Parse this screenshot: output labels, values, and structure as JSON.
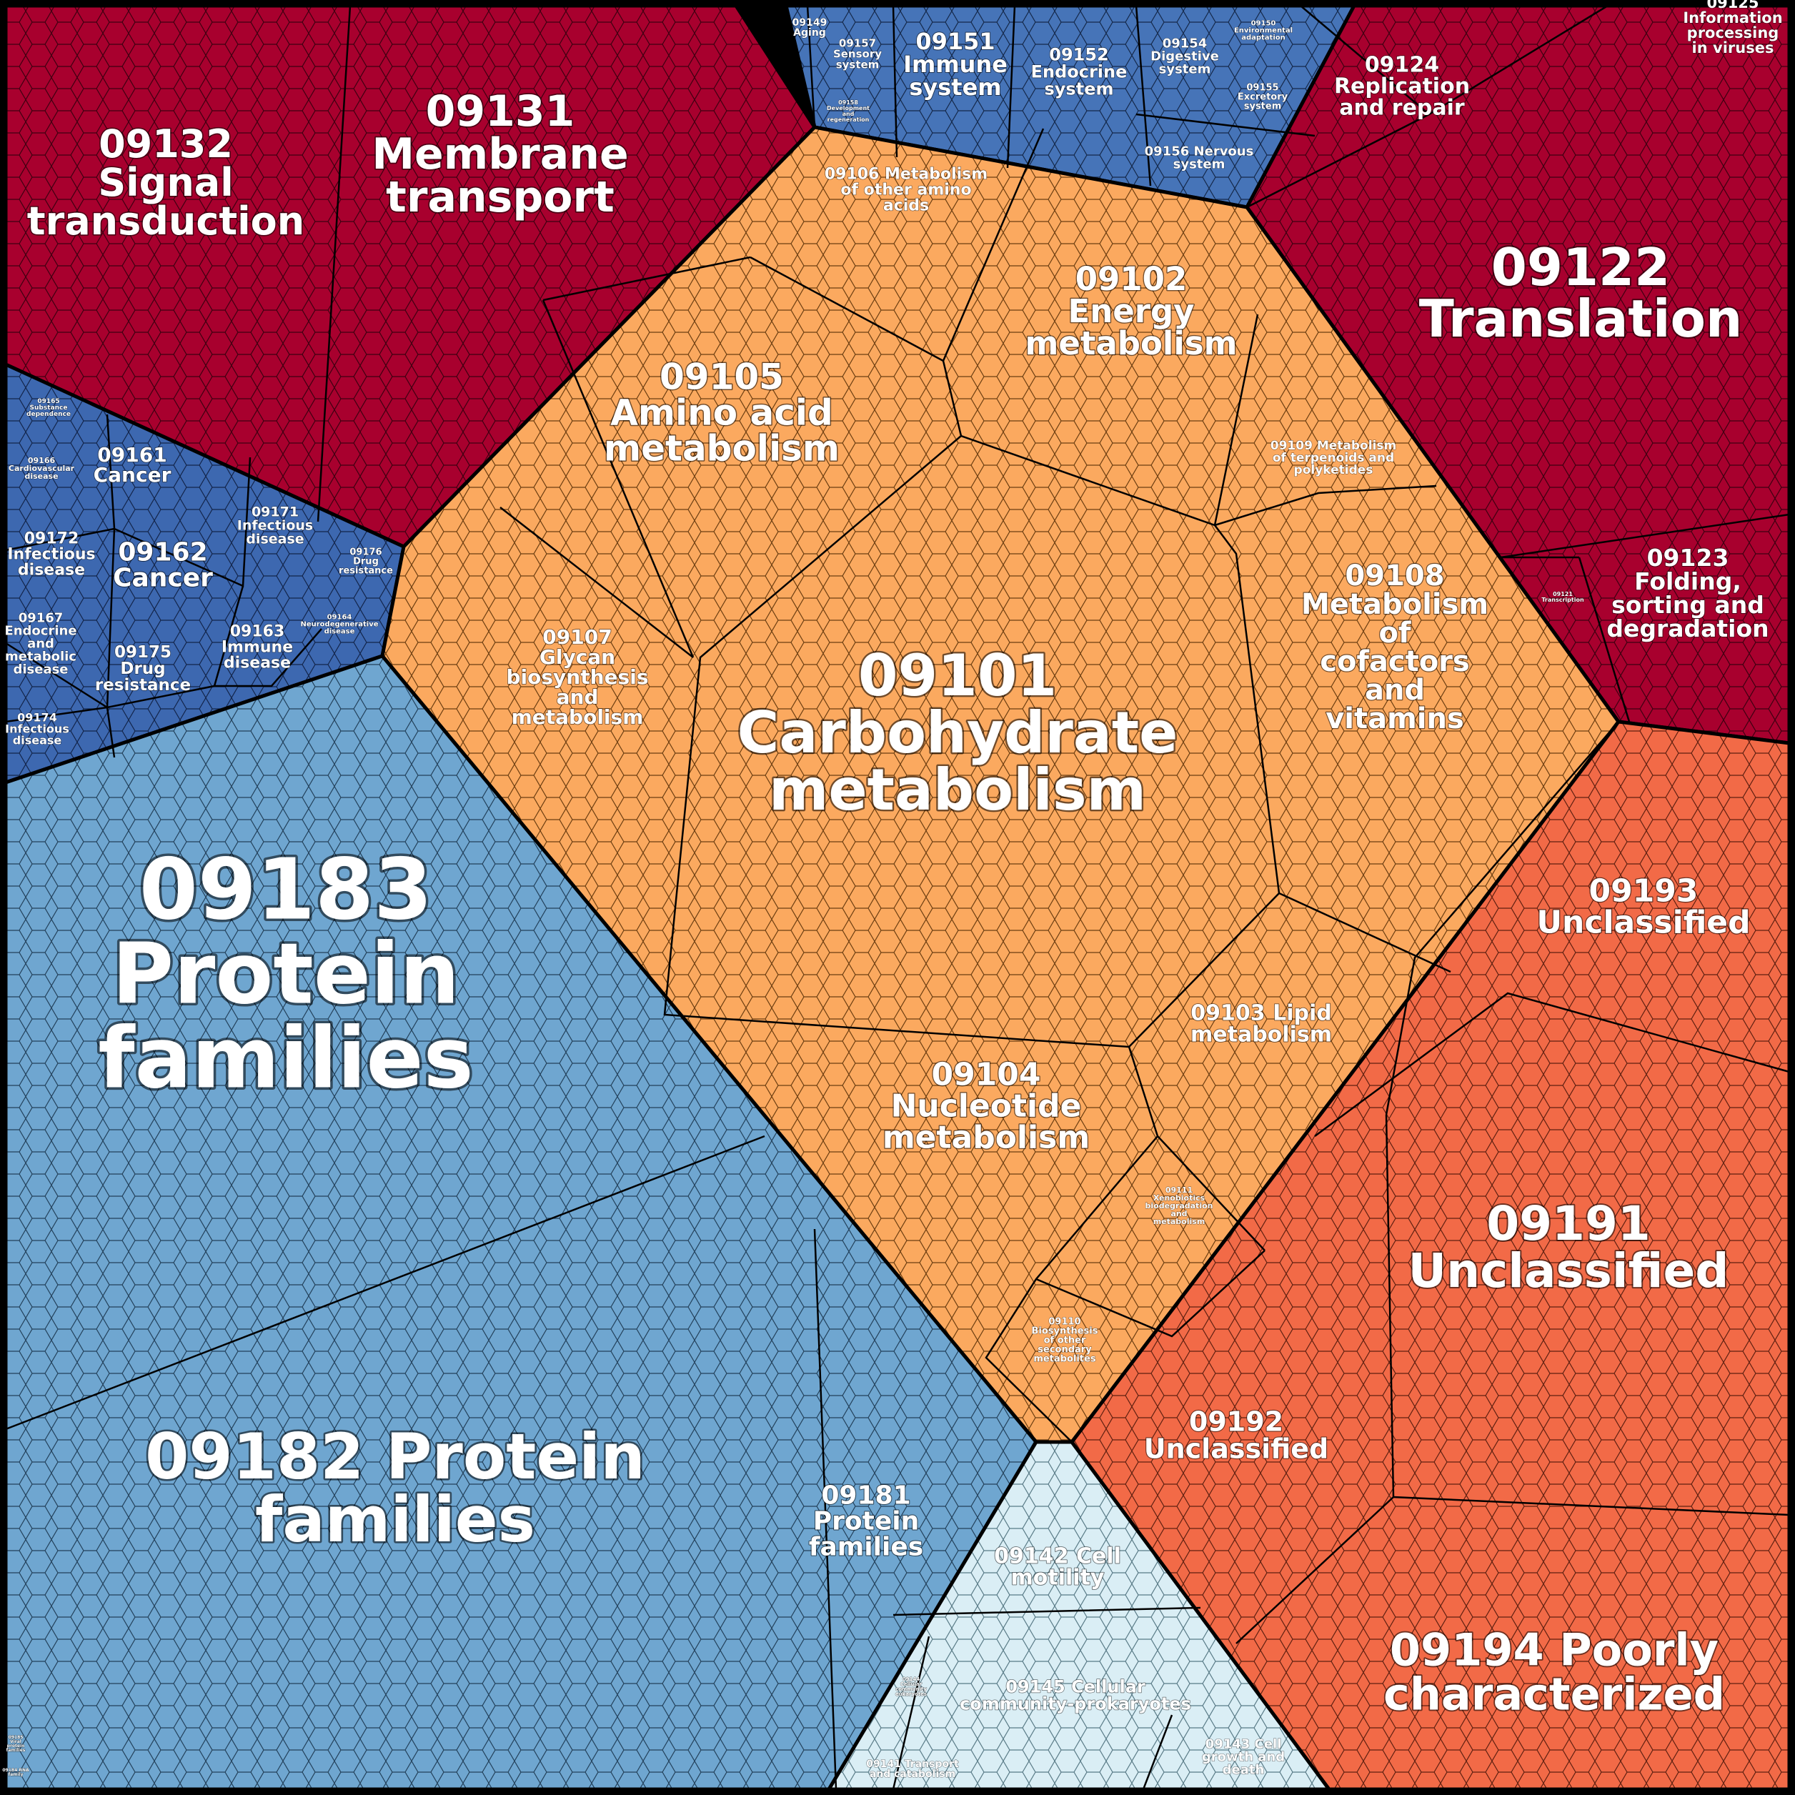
{
  "colors": {
    "metabolism": "#fba95f",
    "genetic_information": "#a8002e",
    "environmental_information": "#4472b8",
    "human_diseases": "#3d6ab3",
    "cellular_processes": "#d8eef4",
    "brite_protein_families": "#6fa6d0",
    "not_included": "#f26a47"
  },
  "categories": {
    "c09132": [
      "09132",
      "Signal",
      "transduction"
    ],
    "c09131": [
      "09131",
      "Membrane",
      "transport"
    ],
    "c09149": [
      "09149",
      "Aging"
    ],
    "c09157": [
      "09157",
      "Sensory",
      "system"
    ],
    "c09151": [
      "09151",
      "Immune",
      "system"
    ],
    "c09152": [
      "09152",
      "Endocrine",
      "system"
    ],
    "c09154": [
      "09154",
      "Digestive",
      "system"
    ],
    "c09150": [
      "09150",
      "Environmental",
      "adaptation"
    ],
    "c09155": [
      "09155",
      "Excretory",
      "system"
    ],
    "c09156": [
      "09156 Nervous",
      "system"
    ],
    "c09158": [
      "09158",
      "Development",
      "and",
      "regeneration"
    ],
    "c09124": [
      "09124",
      "Replication",
      "and repair"
    ],
    "c09125": [
      "09125",
      "Information",
      "processing",
      "in viruses"
    ],
    "c09122": [
      "09122",
      "Translation"
    ],
    "c09123": [
      "09123",
      "Folding,",
      "sorting and",
      "degradation"
    ],
    "c09121": [
      "09121",
      "Transcription"
    ],
    "c09106": [
      "09106 Metabolism",
      "of other amino",
      "acids"
    ],
    "c09102": [
      "09102",
      "Energy",
      "metabolism"
    ],
    "c09105": [
      "09105",
      "Amino acid",
      "metabolism"
    ],
    "c09109": [
      "09109 Metabolism",
      "of terpenoids and",
      "polyketides"
    ],
    "c09108": [
      "09108",
      "Metabolism",
      "of",
      "cofactors",
      "and",
      "vitamins"
    ],
    "c09107": [
      "09107",
      "Glycan",
      "biosynthesis",
      "and",
      "metabolism"
    ],
    "c09101": [
      "09101",
      "Carbohydrate",
      "metabolism"
    ],
    "c09103": [
      "09103 Lipid",
      "metabolism"
    ],
    "c09104": [
      "09104",
      "Nucleotide",
      "metabolism"
    ],
    "c09111": [
      "09111",
      "Xenobiotics",
      "biodegradation",
      "and",
      "metabolism"
    ],
    "c09110": [
      "09110",
      "Biosynthesis",
      "of other",
      "secondary",
      "metabolites"
    ],
    "c09165": [
      "09165",
      "Substance",
      "dependence"
    ],
    "c09166": [
      "09166",
      "Cardiovascular",
      "disease"
    ],
    "c09161": [
      "09161",
      "Cancer"
    ],
    "c09171": [
      "09171",
      "Infectious",
      "disease"
    ],
    "c09172": [
      "09172",
      "Infectious",
      "disease"
    ],
    "c09162": [
      "09162",
      "Cancer"
    ],
    "c09176": [
      "09176",
      "Drug",
      "resistance"
    ],
    "c09164": [
      "09164",
      "Neurodegenerative",
      "disease"
    ],
    "c09167": [
      "09167",
      "Endocrine",
      "and",
      "metabolic",
      "disease"
    ],
    "c09175": [
      "09175",
      "Drug",
      "resistance"
    ],
    "c09163": [
      "09163",
      "Immune",
      "disease"
    ],
    "c09174": [
      "09174",
      "Infectious",
      "disease"
    ],
    "c09183": [
      "09183",
      "Protein",
      "families"
    ],
    "c09182": [
      "09182 Protein",
      "families"
    ],
    "c09181": [
      "09181",
      "Protein",
      "families"
    ],
    "c09142": [
      "09142 Cell",
      "motility"
    ],
    "c09145": [
      "09145 Cellular",
      "community-prokaryotes"
    ],
    "c09141": [
      "09141 Transport",
      "and catabolism"
    ],
    "c09143": [
      "09143 Cell",
      "growth and",
      "death"
    ],
    "c09144": [
      "09144",
      "Cellular",
      "community",
      "eukaryotes"
    ],
    "c09185": [
      "09185",
      "Viral",
      "protein",
      "families"
    ],
    "c09184": [
      "09184 RNA",
      "family"
    ],
    "c09193": [
      "09193",
      "Unclassified"
    ],
    "c09191": [
      "09191",
      "Unclassified"
    ],
    "c09192": [
      "09192",
      "Unclassified"
    ],
    "c09194": [
      "09194 Poorly",
      "characterized"
    ]
  }
}
